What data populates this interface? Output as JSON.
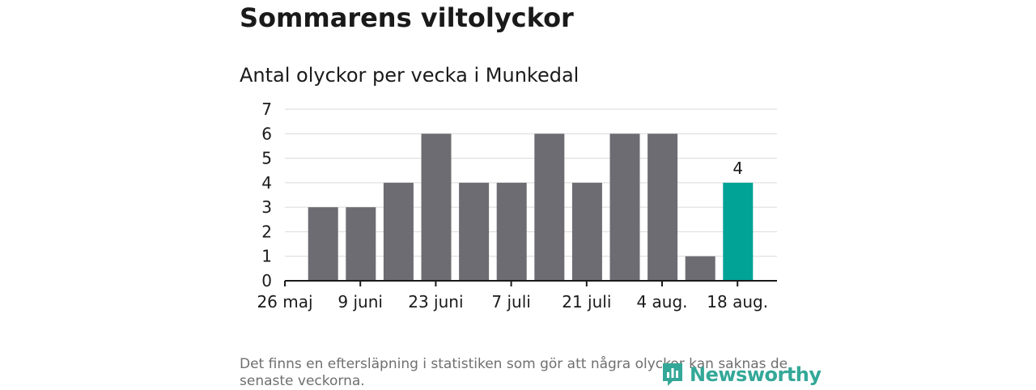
{
  "title": "Sommarens viltolyckor",
  "subtitle": "Antal olyckor per vecka i Munkedal",
  "footnote": "Det finns en eftersläpning i statistiken som gör att några olyckor kan saknas de senaste veckorna.",
  "brand": {
    "name": "Newsworthy",
    "icon": "newsworthy-logo-icon",
    "color": "#34a898"
  },
  "colors": {
    "bar": "#6d6c72",
    "highlight": "#00a396",
    "grid": "#d9d9d9",
    "axis": "#1a1a1a"
  },
  "chart_data": {
    "type": "bar",
    "title": "Antal olyckor per vecka i Munkedal",
    "xlabel": "",
    "ylabel": "",
    "x_tick_labels": [
      "26 maj",
      "9 juni",
      "23 juni",
      "7 juli",
      "21 juli",
      "4 aug.",
      "18 aug."
    ],
    "weeks_start": [
      "2019-06-03",
      "2019-06-10",
      "2019-06-17",
      "2019-06-24",
      "2019-07-01",
      "2019-07-08",
      "2019-07-15",
      "2019-07-22",
      "2019-07-29",
      "2019-08-05",
      "2019-08-12",
      "2019-08-19"
    ],
    "values": [
      3,
      3,
      4,
      6,
      4,
      4,
      6,
      4,
      6,
      6,
      1,
      4
    ],
    "highlight_index": 11,
    "highlight_label": "4",
    "ylim": [
      0,
      7
    ],
    "yticks": [
      0,
      1,
      2,
      3,
      4,
      5,
      6,
      7
    ],
    "grid": true,
    "legend": "none"
  }
}
